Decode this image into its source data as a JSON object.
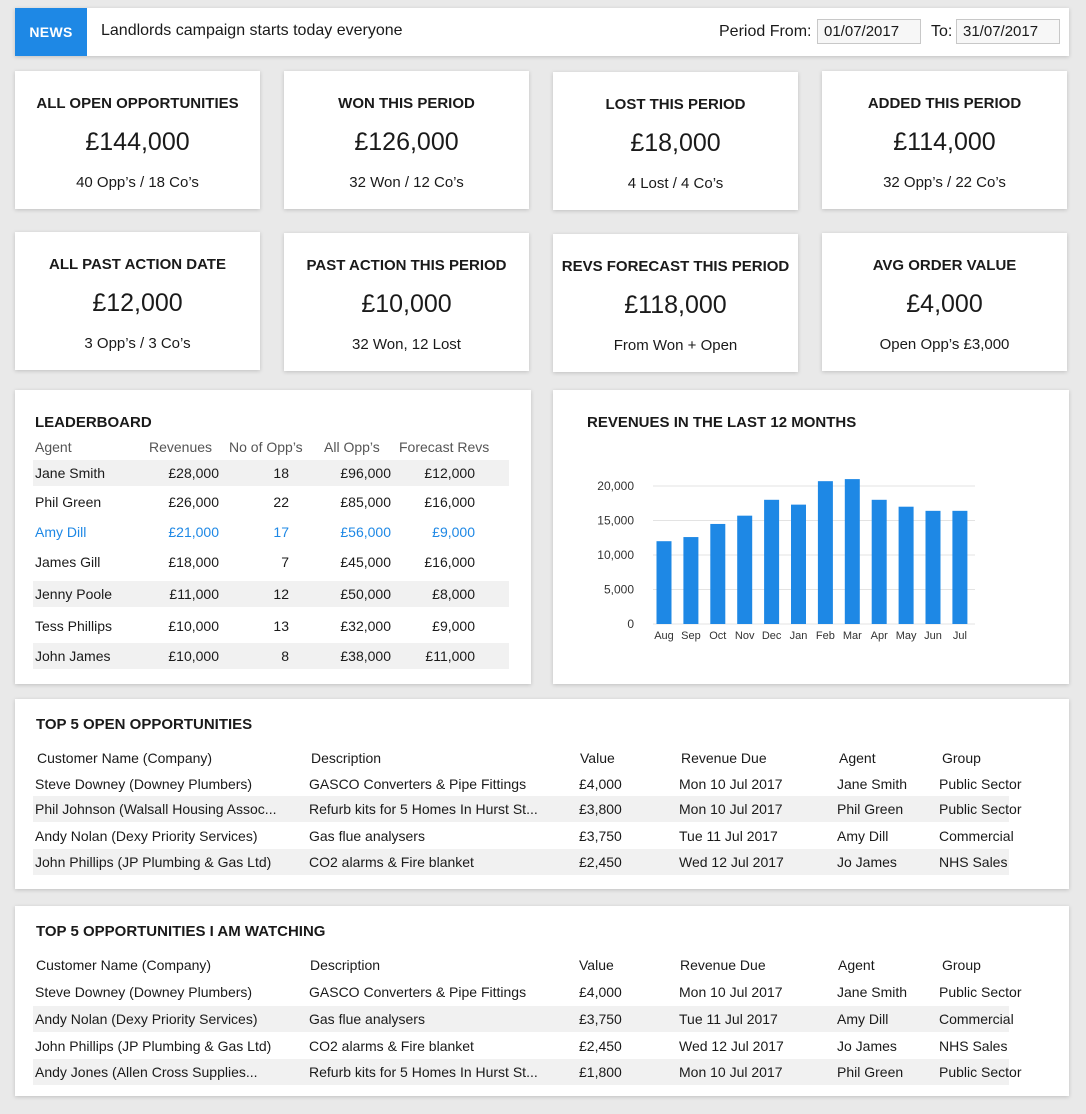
{
  "news": {
    "badge": "NEWS",
    "text": "Landlords campaign starts today everyone",
    "period_from_label": "Period From:",
    "period_from": "01/07/2017",
    "period_to_label": "To:",
    "period_to": "31/07/2017"
  },
  "kpis": [
    {
      "title": "ALL OPEN OPPORTUNITIES",
      "value": "£144,000",
      "sub": "40 Opp’s  / 18 Co’s"
    },
    {
      "title": "WON THIS PERIOD",
      "value": "£126,000",
      "sub": "32 Won / 12 Co’s"
    },
    {
      "title": "LOST THIS PERIOD",
      "value": "£18,000",
      "sub": "4 Lost / 4 Co’s"
    },
    {
      "title": "ADDED THIS PERIOD",
      "value": "£114,000",
      "sub": "32 Opp’s  / 22 Co’s"
    },
    {
      "title": "ALL PAST ACTION DATE",
      "value": "£12,000",
      "sub": "3 Opp’s  / 3 Co’s"
    },
    {
      "title": "PAST ACTION THIS PERIOD",
      "value": "£10,000",
      "sub": "32 Won, 12 Lost"
    },
    {
      "title": "REVS FORECAST THIS PERIOD",
      "value": "£118,000",
      "sub": "From Won + Open"
    },
    {
      "title": "AVG ORDER VALUE",
      "value": "£4,000",
      "sub": "Open Opp’s £3,000"
    }
  ],
  "leaderboard": {
    "title": "LEADERBOARD",
    "headers": [
      "Agent",
      "Revenues",
      "No of Opp’s",
      "All Opp’s",
      "Forecast Revs"
    ],
    "rows": [
      [
        "Jane Smith",
        "£28,000",
        "18",
        "£96,000",
        "£12,000"
      ],
      [
        "Phil Green",
        "£26,000",
        "22",
        "£85,000",
        "£16,000"
      ],
      [
        "Amy Dill",
        "£21,000",
        "17",
        "£56,000",
        "£9,000"
      ],
      [
        "James Gill",
        "£18,000",
        "7",
        "£45,000",
        "£16,000"
      ],
      [
        "Jenny Poole",
        "£11,000",
        "12",
        "£50,000",
        "£8,000"
      ],
      [
        "Tess Phillips",
        "£10,000",
        "13",
        "£32,000",
        "£9,000"
      ],
      [
        "John James",
        "£10,000",
        "8",
        "£38,000",
        "£11,000"
      ]
    ],
    "highlight_color": "#1e88e5"
  },
  "chart_data": {
    "type": "bar",
    "title": "REVENUES IN THE LAST 12 MONTHS",
    "categories": [
      "Aug",
      "Sep",
      "Oct",
      "Nov",
      "Dec",
      "Jan",
      "Feb",
      "Mar",
      "Apr",
      "May",
      "Jun",
      "Jul"
    ],
    "values": [
      12000,
      12600,
      14500,
      15700,
      18000,
      17300,
      20700,
      21000,
      18000,
      17000,
      16400,
      16400
    ],
    "yticks": [
      "0",
      "5,000",
      "10,000",
      "15,000",
      "20,000"
    ],
    "ylim": [
      0,
      20000
    ],
    "grid": true,
    "bar_color": "#1e88e5"
  },
  "top5_open": {
    "title": "TOP 5 OPEN OPPORTUNITIES",
    "headers": [
      "Customer Name (Company)",
      "Description",
      "Value",
      "Revenue Due",
      "Agent",
      "Group"
    ],
    "rows": [
      [
        "Steve Downey (Downey Plumbers)",
        "GASCO Converters & Pipe Fittings",
        "£4,000",
        "Mon 10 Jul 2017",
        "Jane Smith",
        "Public Sector"
      ],
      [
        "Phil Johnson (Walsall Housing Assoc...",
        "Refurb kits for 5 Homes In Hurst St...",
        "£3,800",
        "Mon 10 Jul 2017",
        "Phil Green",
        "Public Sector"
      ],
      [
        "Andy Nolan (Dexy Priority Services)",
        "Gas flue analysers",
        "£3,750",
        "Tue 11 Jul 2017",
        "Amy Dill",
        "Commercial"
      ],
      [
        "John Phillips (JP Plumbing & Gas Ltd)",
        "CO2 alarms & Fire blanket",
        "£2,450",
        "Wed 12 Jul 2017",
        "Jo James",
        "NHS Sales"
      ]
    ]
  },
  "top5_watch": {
    "title": "TOP 5 OPPORTUNITIES I AM WATCHING",
    "headers": [
      "Customer Name (Company)",
      "Description",
      "Value",
      "Revenue Due",
      "Agent",
      "Group"
    ],
    "rows": [
      [
        "Steve Downey (Downey Plumbers)",
        "GASCO Converters & Pipe Fittings",
        "£4,000",
        "Mon 10 Jul 2017",
        "Jane Smith",
        "Public Sector"
      ],
      [
        "Andy Nolan (Dexy Priority Services)",
        "Gas flue analysers",
        "£3,750",
        "Tue 11 Jul 2017",
        "Amy Dill",
        "Commercial"
      ],
      [
        "John Phillips (JP Plumbing & Gas Ltd)",
        "CO2 alarms & Fire blanket",
        "£2,450",
        "Wed 12 Jul 2017",
        "Jo James",
        "NHS Sales"
      ],
      [
        "Andy Jones (Allen Cross Supplies...",
        "Refurb kits for 5 Homes In Hurst St...",
        "£1,800",
        "Mon 10 Jul 2017",
        "Phil Green",
        "Public Sector"
      ]
    ]
  }
}
